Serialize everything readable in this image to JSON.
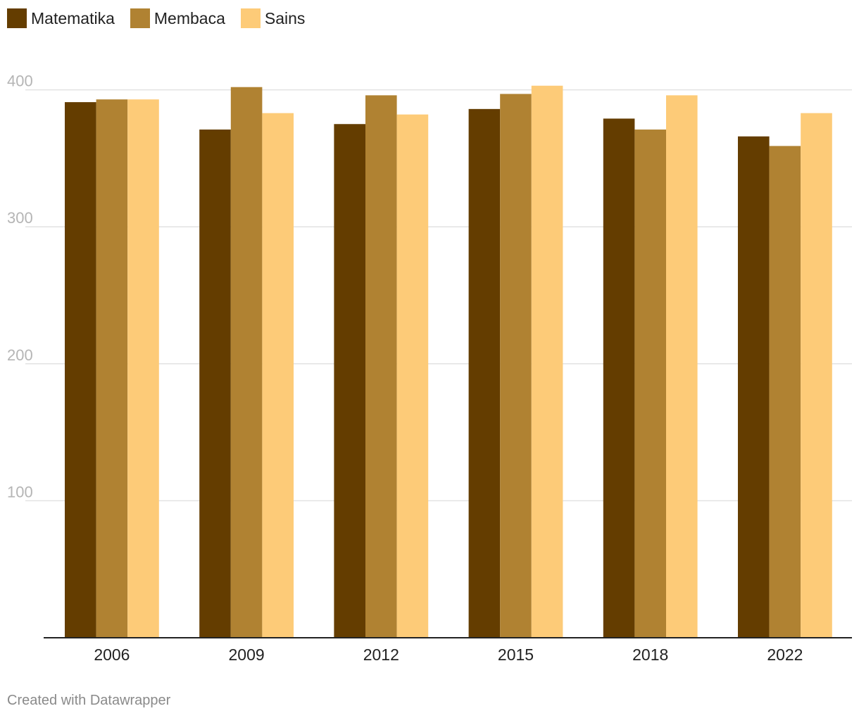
{
  "colors": {
    "matematika": "#643d00",
    "membaca": "#b08232",
    "sains": "#fdcb78",
    "grid": "#e2e2e2",
    "axis": "#222222"
  },
  "legend": [
    {
      "label": "Matematika",
      "color": "#643d00"
    },
    {
      "label": "Membaca",
      "color": "#b08232"
    },
    {
      "label": "Sains",
      "color": "#fdcb78"
    }
  ],
  "footer": "Created with Datawrapper",
  "chart_data": {
    "type": "bar",
    "categories": [
      "2006",
      "2009",
      "2012",
      "2015",
      "2018",
      "2022"
    ],
    "series": [
      {
        "name": "Matematika",
        "values": [
          391,
          371,
          375,
          386,
          379,
          366
        ]
      },
      {
        "name": "Membaca",
        "values": [
          393,
          402,
          396,
          397,
          371,
          359
        ]
      },
      {
        "name": "Sains",
        "values": [
          393,
          383,
          382,
          403,
          396,
          383
        ]
      }
    ],
    "yticks": [
      100,
      200,
      300,
      400
    ],
    "ylim": [
      0,
      400
    ],
    "grid": true,
    "legend_position": "top-left",
    "title": "",
    "xlabel": "",
    "ylabel": ""
  }
}
